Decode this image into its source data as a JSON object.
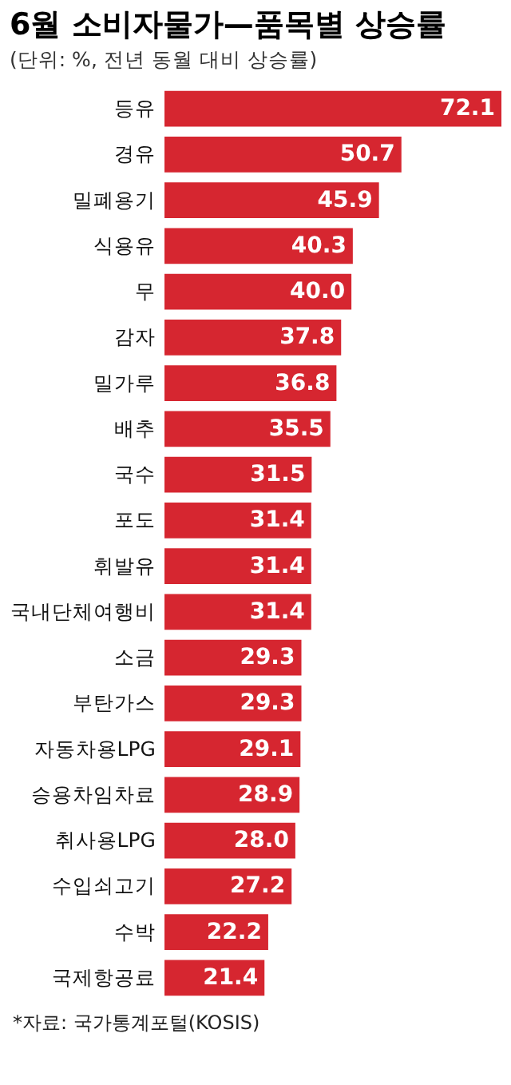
{
  "chart_data": {
    "type": "bar",
    "orientation": "horizontal",
    "title": "6월 소비자물가—품목별 상승률",
    "subtitle": "(단위: %, 전년 동월 대비 상승률)",
    "categories": [
      "등유",
      "경유",
      "밀폐용기",
      "식용유",
      "무",
      "감자",
      "밀가루",
      "배추",
      "국수",
      "포도",
      "휘발유",
      "국내단체여행비",
      "소금",
      "부탄가스",
      "자동차용LPG",
      "승용차임차료",
      "취사용LPG",
      "수입쇠고기",
      "수박",
      "국제항공료"
    ],
    "values": [
      72.1,
      50.7,
      45.9,
      40.3,
      40.0,
      37.8,
      36.8,
      35.5,
      31.5,
      31.4,
      31.4,
      31.4,
      29.3,
      29.3,
      29.1,
      28.9,
      28.0,
      27.2,
      22.2,
      21.4
    ],
    "value_labels": [
      "72.1",
      "50.7",
      "45.9",
      "40.3",
      "40.0",
      "37.8",
      "36.8",
      "35.5",
      "31.5",
      "31.4",
      "31.4",
      "31.4",
      "29.3",
      "29.3",
      "29.1",
      "28.9",
      "28.0",
      "27.2",
      "22.2",
      "21.4"
    ],
    "color": "#d62630",
    "annotations": [
      "*자료: 국가통계포털(KOSIS)"
    ]
  }
}
